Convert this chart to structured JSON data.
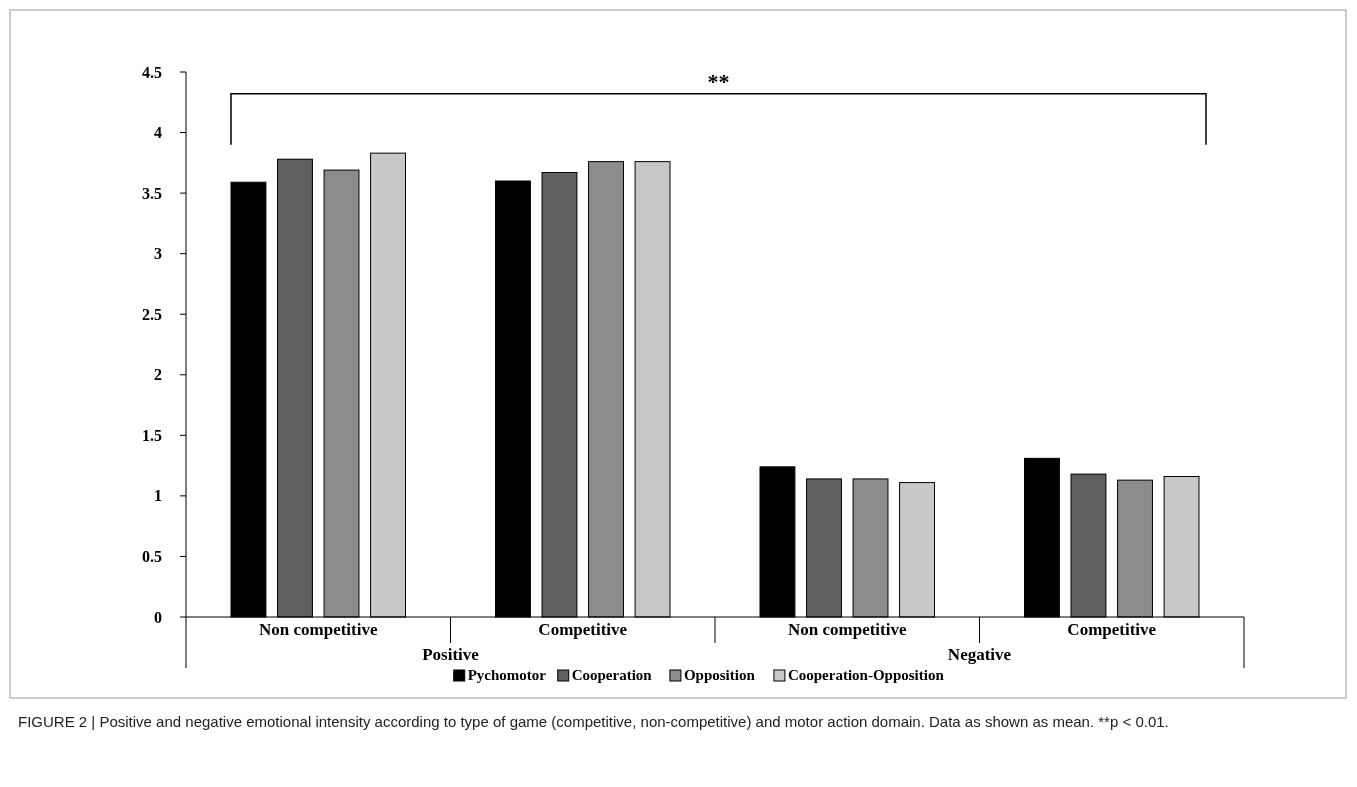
{
  "chart_data": {
    "type": "bar",
    "categories": [
      "Non competitive",
      "Competitive",
      "Non competitive",
      "Competitive"
    ],
    "series": [
      {
        "name": "Pychomotor",
        "color": "#000000",
        "values": [
          3.59,
          3.6,
          1.24,
          1.31
        ]
      },
      {
        "name": "Cooperation",
        "color": "#606060",
        "values": [
          3.78,
          3.67,
          1.14,
          1.18
        ]
      },
      {
        "name": "Opposition",
        "color": "#8c8c8c",
        "values": [
          3.69,
          3.76,
          1.14,
          1.13
        ]
      },
      {
        "name": "Cooperation-Opposition",
        "color": "#c8c8c8",
        "values": [
          3.83,
          3.76,
          1.11,
          1.16
        ]
      }
    ],
    "ylim": [
      0,
      4.5
    ],
    "yticks": [
      0,
      0.5,
      1,
      1.5,
      2,
      2.5,
      3,
      3.5,
      4,
      4.5
    ],
    "grid": false,
    "legend": "bottom",
    "annotations": [
      "**",
      "Positive",
      "Negative",
      "FIGURE 2 | Positive and negative emotional intensity according to type of game (competitive, non-competitive) and motor action domain. Data as shown as mean. **p < 0.01."
    ]
  }
}
